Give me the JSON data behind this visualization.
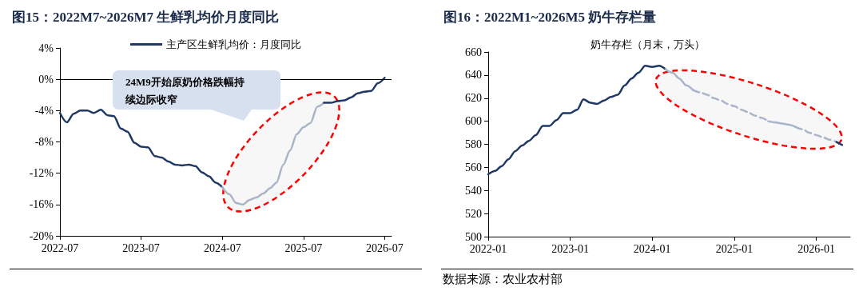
{
  "chart_data": [
    {
      "type": "line",
      "title": "图15：2022M7~2026M7 生鲜乳均价月度同比",
      "annotations": [
        "24M9开始原奶价格跌幅持续边际收窄"
      ],
      "legend": "top",
      "marker": "none",
      "grid": false,
      "xlim": [
        "2022-07",
        "2026-08"
      ],
      "xticks": [
        "2022-07",
        "2023-07",
        "2024-07",
        "2025-07",
        "2026-07"
      ],
      "ylim": [
        -20,
        4
      ],
      "yticks": [
        {
          "value": -20,
          "label": "-20%"
        },
        {
          "value": -16,
          "label": "-16%"
        },
        {
          "value": -12,
          "label": "-12%"
        },
        {
          "value": -8,
          "label": "-8%"
        },
        {
          "value": -4,
          "label": "-4%"
        },
        {
          "value": 0,
          "label": "0%"
        },
        {
          "value": 4,
          "label": "4%"
        }
      ],
      "ref_lines": [
        {
          "axis": "y",
          "value": 0,
          "color": "#000000"
        }
      ],
      "series": [
        {
          "name": "主产区生鲜乳均价：月度同比",
          "color": "#1f3864",
          "x": [
            "2022-07",
            "2022-08",
            "2022-09",
            "2022-10",
            "2022-11",
            "2022-12",
            "2023-01",
            "2023-02",
            "2023-03",
            "2023-04",
            "2023-05",
            "2023-06",
            "2023-07",
            "2023-08",
            "2023-09",
            "2023-10",
            "2023-11",
            "2023-12",
            "2024-01",
            "2024-02",
            "2024-03",
            "2024-04",
            "2024-05",
            "2024-06",
            "2024-07"
          ],
          "values": [
            -4.3,
            -5.5,
            -4.4,
            -4.0,
            -4.0,
            -4.3,
            -3.9,
            -4.6,
            -4.7,
            -6.3,
            -6.7,
            -8.1,
            -8.6,
            -8.7,
            -9.8,
            -10.0,
            -10.5,
            -10.9,
            -11.0,
            -10.9,
            -11.1,
            -11.9,
            -12.4,
            -13.2,
            -13.8
          ]
        },
        {
          "color": "#a9b4c8",
          "x": [
            "2024-07",
            "2024-08",
            "2024-09",
            "2024-10",
            "2024-11",
            "2024-12",
            "2025-01",
            "2025-02",
            "2025-03",
            "2025-04",
            "2025-05",
            "2025-06",
            "2025-07",
            "2025-08",
            "2025-09",
            "2025-10"
          ],
          "values": [
            -13.8,
            -14.7,
            -15.8,
            -16.0,
            -15.4,
            -15.1,
            -14.6,
            -13.9,
            -13.2,
            -10.9,
            -9.1,
            -7.0,
            -6.1,
            -5.6,
            -3.5,
            -3.0
          ]
        },
        {
          "color": "#1f3864",
          "x": [
            "2025-10",
            "2025-11",
            "2025-12",
            "2026-01",
            "2026-02",
            "2026-03",
            "2026-04",
            "2026-05",
            "2026-06",
            "2026-07"
          ],
          "values": [
            -3.0,
            -3.0,
            -2.8,
            -2.7,
            -2.3,
            -1.8,
            -1.6,
            -1.5,
            -0.5,
            0.2
          ]
        }
      ]
    },
    {
      "type": "line",
      "title": "图16：2022M1~2026M5 奶牛存栏量",
      "subtitle": "奶牛存栏（月末，万头）",
      "annotations": [
        "数据来源：农业农村部"
      ],
      "marker": "none",
      "grid": false,
      "xlim": [
        "2022-01",
        "2026-06"
      ],
      "xticks": [
        "2022-01",
        "2023-01",
        "2024-01",
        "2025-01",
        "2026-01"
      ],
      "ylim": [
        500,
        660
      ],
      "yticks": [
        500,
        520,
        540,
        560,
        580,
        600,
        620,
        640,
        660
      ],
      "series": [
        {
          "color": "#1f3864",
          "line_style": "solid",
          "x": [
            "2022-01",
            "2022-02",
            "2022-03",
            "2022-04",
            "2022-05",
            "2022-06",
            "2022-07",
            "2022-08",
            "2022-09",
            "2022-10",
            "2022-11",
            "2022-12",
            "2023-01",
            "2023-02",
            "2023-03",
            "2023-04",
            "2023-05",
            "2023-06",
            "2023-07",
            "2023-08",
            "2023-09",
            "2023-10",
            "2023-11",
            "2023-12",
            "2024-01",
            "2024-02",
            "2024-03"
          ],
          "values": [
            554,
            557,
            561,
            567,
            574,
            579,
            583,
            588,
            596,
            596,
            601,
            607,
            607,
            610,
            619,
            616,
            615,
            618,
            621,
            623,
            631,
            637,
            642,
            648,
            647,
            648,
            645
          ]
        },
        {
          "color": "#a9b4c8",
          "line_style": "solid",
          "x": [
            "2024-03",
            "2024-04",
            "2024-05",
            "2024-06",
            "2024-07"
          ],
          "values": [
            645,
            642,
            637,
            631,
            627
          ]
        },
        {
          "color": "#a9b4c8",
          "line_style": "dashed",
          "x": [
            "2024-07",
            "2024-08",
            "2024-09",
            "2024-10",
            "2024-11",
            "2024-12",
            "2025-01",
            "2025-02",
            "2025-03",
            "2025-04",
            "2025-05",
            "2025-06"
          ],
          "values": [
            627,
            625,
            623,
            620,
            618,
            615,
            613,
            610,
            608,
            605,
            603,
            600
          ]
        },
        {
          "color": "#a9b4c8",
          "line_style": "solid",
          "x": [
            "2025-06",
            "2025-07",
            "2025-08",
            "2025-09",
            "2025-10"
          ],
          "values": [
            600,
            599,
            598,
            597,
            595
          ]
        },
        {
          "color": "#a9b4c8",
          "line_style": "dashed",
          "x": [
            "2025-10",
            "2025-11",
            "2025-12",
            "2026-01",
            "2026-02",
            "2026-03",
            "2026-04"
          ],
          "values": [
            595,
            593,
            590,
            588,
            586,
            584,
            582
          ]
        },
        {
          "color": "#1f3864",
          "line_style": "dashed",
          "x": [
            "2026-04",
            "2026-05"
          ],
          "values": [
            582,
            579
          ]
        }
      ]
    }
  ]
}
